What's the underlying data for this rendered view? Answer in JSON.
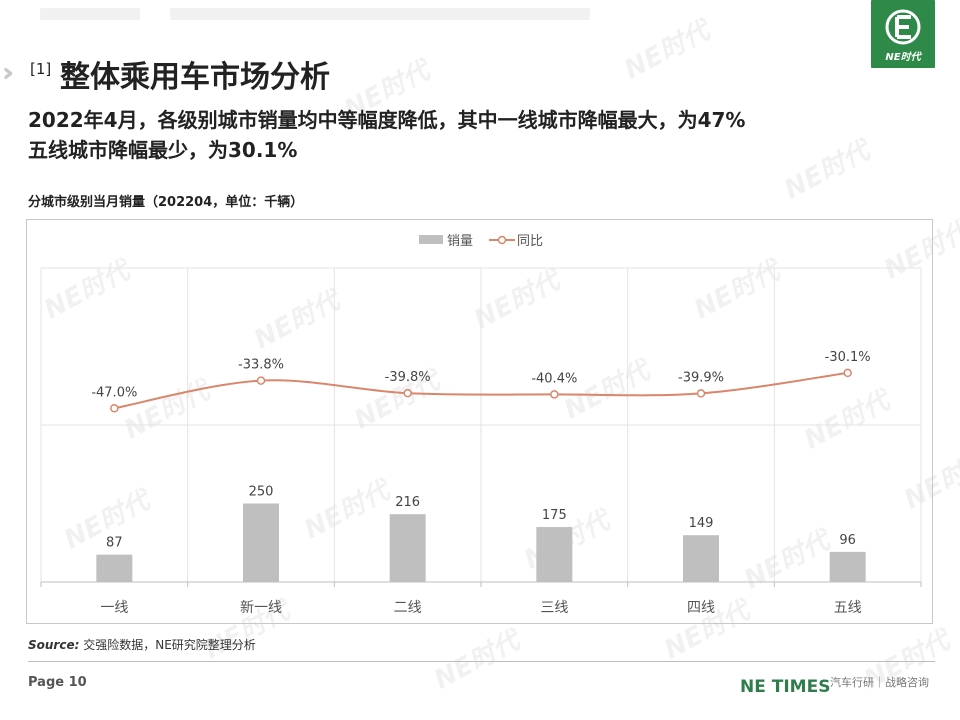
{
  "header": {
    "section_number": "[1]",
    "title": "整体乘用车市场分析",
    "logo_text": "NE时代"
  },
  "headline": {
    "line1": "2022年4月，各级别城市销量均中等幅度降低，其中一线城市降幅最大，为47%",
    "line2": "五线城市降幅最少，为30.1%"
  },
  "chart_caption": "分城市级别当月销量（202204，单位：千辆）",
  "chart_data": {
    "type": "bar",
    "categories": [
      "一线",
      "新一线",
      "二线",
      "三线",
      "四线",
      "五线"
    ],
    "series": [
      {
        "name": "销量",
        "type": "bar",
        "values": [
          87,
          250,
          216,
          175,
          149,
          96
        ],
        "color": "#bfbfbf"
      },
      {
        "name": "同比",
        "type": "line",
        "values": [
          -47.0,
          -33.8,
          -39.8,
          -40.4,
          -39.9,
          -30.1
        ],
        "labels": [
          "-47.0%",
          "-33.8%",
          "-39.8%",
          "-40.4%",
          "-39.9%",
          "-30.1%"
        ],
        "color": "#d9866a"
      }
    ],
    "legend_position": "top-center",
    "grid": true
  },
  "source": {
    "label": "Source:",
    "text": "交强险数据，NE研究院整理分析"
  },
  "footer": {
    "page": "Page 10",
    "brand": "NE TIMES",
    "tagline": "汽车行研｜战略咨询"
  },
  "watermark_text": "NE时代",
  "colors": {
    "brand_green": "#2f8a4a",
    "bar": "#bfbfbf",
    "line": "#d9866a"
  }
}
